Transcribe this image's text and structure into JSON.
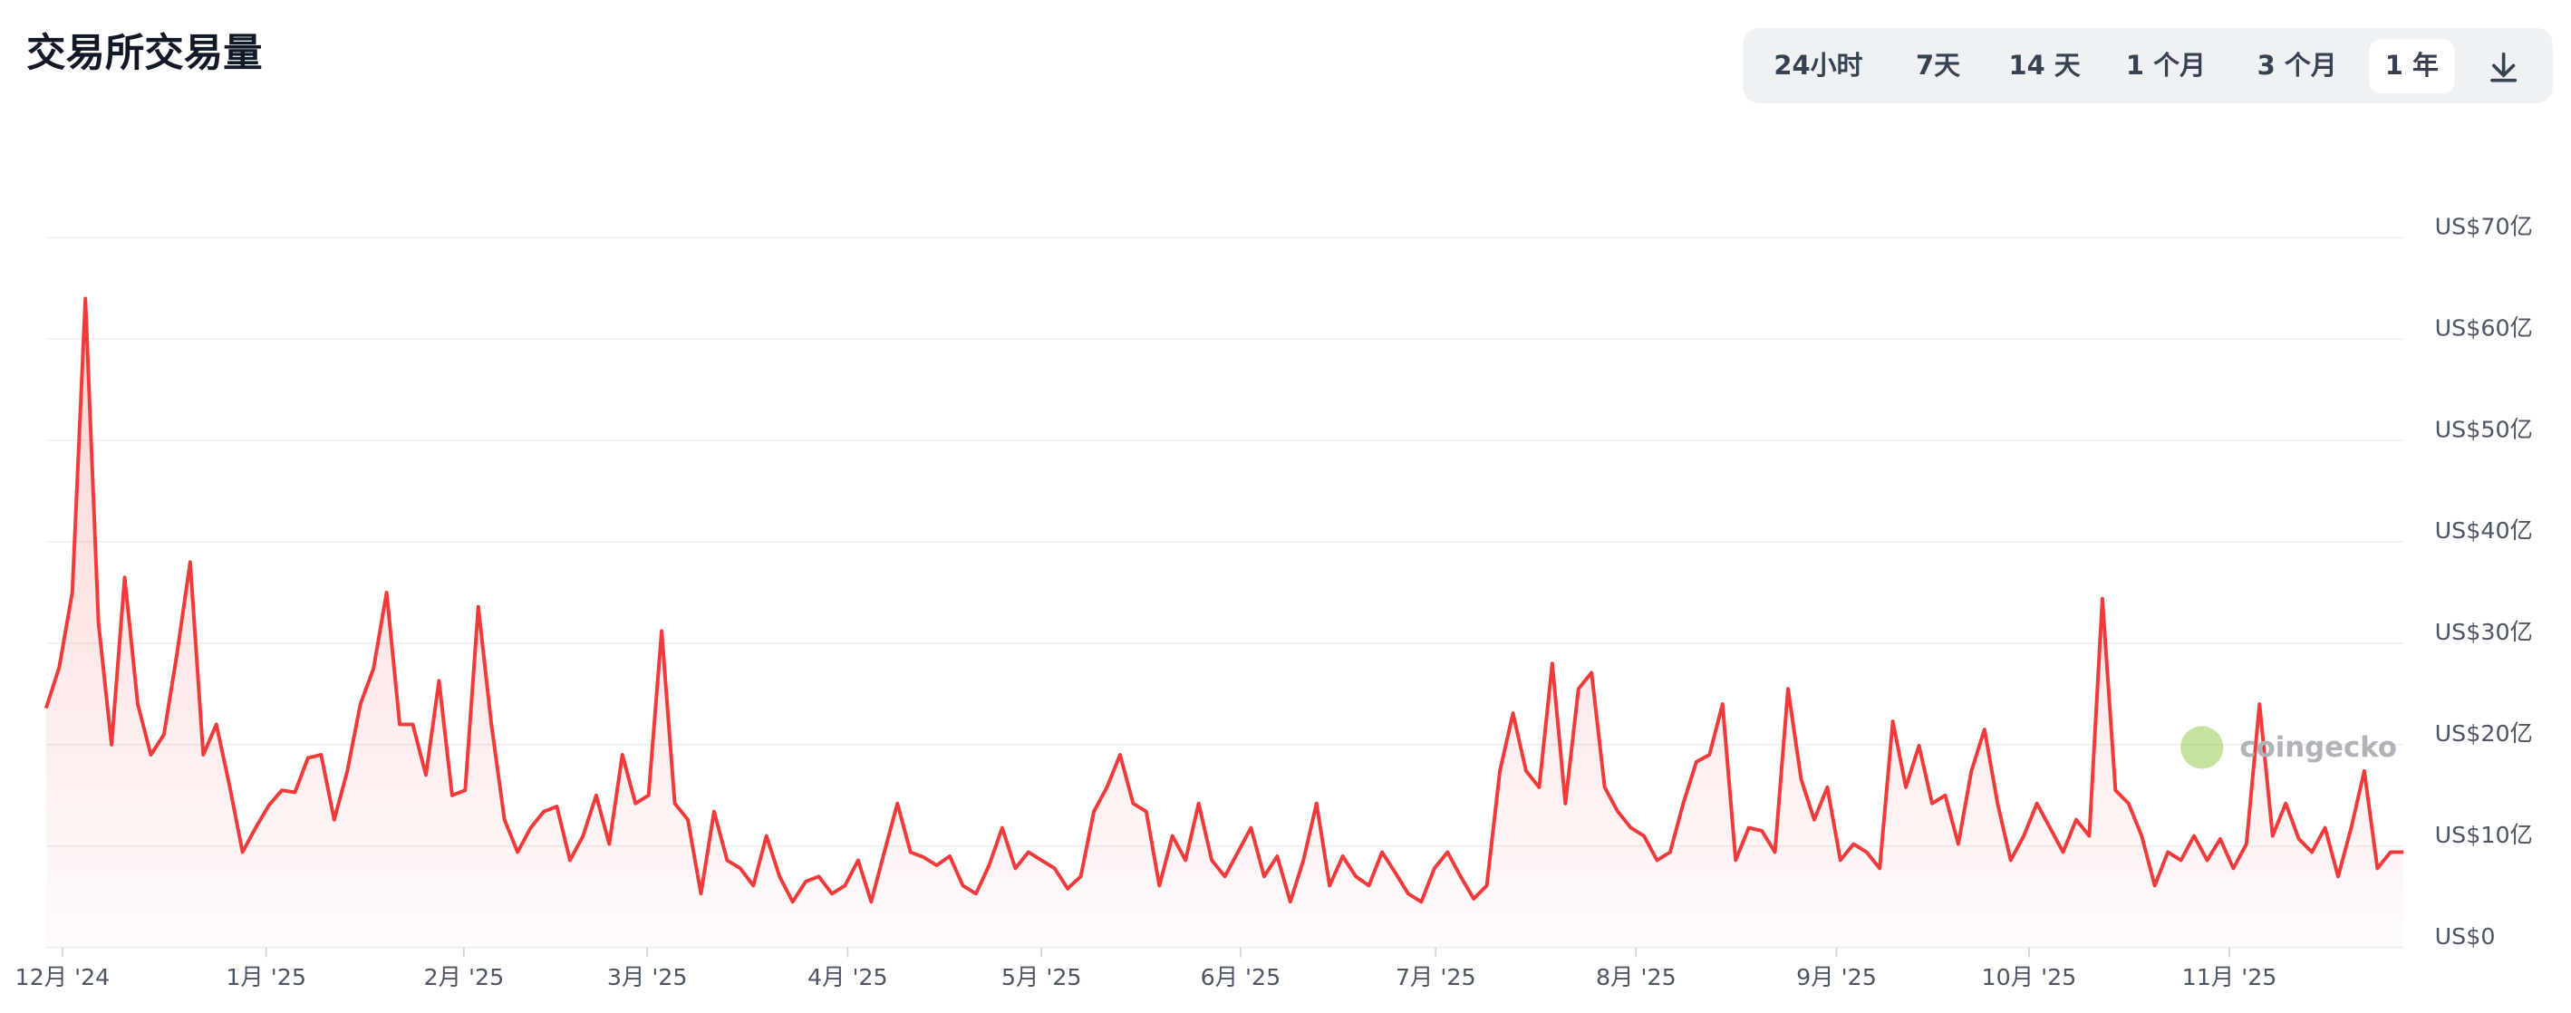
{
  "title": "交易所交易量",
  "buttons": [
    "24小时",
    "7天",
    "14 天",
    "1 个月",
    "3 个月",
    "1 年"
  ],
  "active_button": 5,
  "watermark": "coingecko",
  "chart_data": {
    "type": "line",
    "color": "#f23a3a",
    "grid": true,
    "values": [
      23.6,
      27.6,
      35,
      64,
      32,
      20,
      36.5,
      24,
      19,
      21,
      29,
      38,
      19,
      22,
      16,
      9.4,
      11.8,
      14,
      15.5,
      15.3,
      18.7,
      19,
      12.6,
      17.4,
      24,
      27.5,
      35,
      22,
      22,
      17,
      26.3,
      15,
      15.5,
      33.6,
      22,
      12.6,
      9.4,
      11.8,
      13.4,
      13.9,
      8.6,
      11,
      15,
      10.2,
      19,
      14.2,
      15,
      31.2,
      14.2,
      12.6,
      5.3,
      13.4,
      8.6,
      7.8,
      6.1,
      11,
      7,
      4.5,
      6.5,
      7,
      5.3,
      6.1,
      8.6,
      4.5,
      9.4,
      14.2,
      9.4,
      8.9,
      8.1,
      9,
      6.1,
      5.3,
      8.1,
      11.8,
      7.8,
      9.4,
      8.6,
      7.8,
      5.8,
      7,
      13.4,
      15.8,
      19,
      14.2,
      13.4,
      6.1,
      11,
      8.6,
      14.2,
      8.6,
      7,
      9.4,
      11.8,
      7,
      9,
      4.5,
      8.6,
      14.2,
      6.1,
      9,
      7,
      6.1,
      9.4,
      7.4,
      5.3,
      4.5,
      7.8,
      9.4,
      7,
      4.8,
      6.1,
      17.4,
      23.1,
      17.4,
      15.8,
      28,
      14.2,
      25.5,
      27.1,
      15.8,
      13.4,
      11.8,
      11,
      8.6,
      9.4,
      14.2,
      18.3,
      19,
      24,
      8.6,
      11.8,
      11.5,
      9.4,
      25.5,
      16.6,
      12.6,
      15.8,
      8.6,
      10.2,
      9.4,
      7.8,
      22.3,
      15.8,
      19.9,
      14.2,
      15,
      10.2,
      17.4,
      21.5,
      14.2,
      8.6,
      11,
      14.2,
      11.8,
      9.4,
      12.6,
      11,
      34.4,
      15.5,
      14.2,
      11,
      6.1,
      9.4,
      8.6,
      11,
      8.6,
      10.7,
      7.8,
      10.2,
      24,
      11,
      14.2,
      10.7,
      9.4,
      11.8,
      7,
      11.8,
      17.4,
      7.8,
      9.4,
      9.4
    ],
    "xlim": [
      0,
      180
    ],
    "xticks": [
      {
        "value": 1.25,
        "label": "12月 '24"
      },
      {
        "value": 16.8,
        "label": "1月 '25"
      },
      {
        "value": 31.9,
        "label": "2月 '25"
      },
      {
        "value": 45.9,
        "label": "3月 '25"
      },
      {
        "value": 61.2,
        "label": "4月 '25"
      },
      {
        "value": 76,
        "label": "5月 '25"
      },
      {
        "value": 91.2,
        "label": "6月 '25"
      },
      {
        "value": 106.1,
        "label": "7月 '25"
      },
      {
        "value": 121.4,
        "label": "8月 '25"
      },
      {
        "value": 136.7,
        "label": "9月 '25"
      },
      {
        "value": 151.4,
        "label": "10月 '25"
      },
      {
        "value": 166.7,
        "label": "11月 '25"
      }
    ],
    "ylim": [
      0,
      70
    ],
    "yticks": [
      {
        "value": 0,
        "label": "US$0"
      },
      {
        "value": 10,
        "label": "US$10亿"
      },
      {
        "value": 20,
        "label": "US$20亿"
      },
      {
        "value": 30,
        "label": "US$30亿"
      },
      {
        "value": 40,
        "label": "US$40亿"
      },
      {
        "value": 50,
        "label": "US$50亿"
      },
      {
        "value": 60,
        "label": "US$60亿"
      },
      {
        "value": 70,
        "label": "US$70亿"
      }
    ]
  }
}
